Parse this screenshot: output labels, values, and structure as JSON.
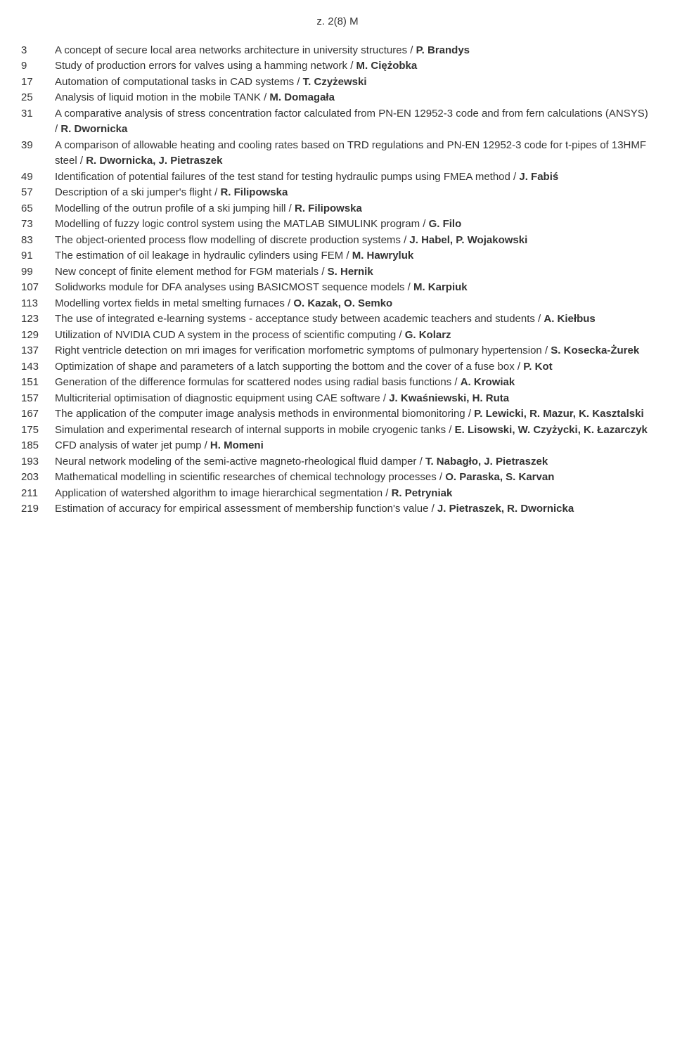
{
  "header": "z. 2(8) M",
  "entries": [
    {
      "page": "3",
      "title": "A concept of secure local area networks architecture in university structures / ",
      "author": "P. Brandys"
    },
    {
      "page": "9",
      "title": "Study of production errors for valves using a hamming network / ",
      "author": "M. Ciężobka"
    },
    {
      "page": "17",
      "title": "Automation of computational tasks in CAD systems / ",
      "author": "T. Czyżewski"
    },
    {
      "page": "25",
      "title": "Analysis of liquid motion in the mobile TANK / ",
      "author": "M. Domagała"
    },
    {
      "page": "31",
      "title": "A comparative analysis of stress concentration factor calculated from PN-EN 12952-3 code and from fern calculations (ANSYS) / ",
      "author": "R. Dwornicka"
    },
    {
      "page": "39",
      "title": "A comparison of allowable heating and cooling rates based on TRD regulations and PN-EN 12952-3 code for t-pipes of 13HMF steel / ",
      "author": "R. Dwornicka, J. Pietraszek"
    },
    {
      "page": "49",
      "title": "Identification of potential failures of the test stand for testing hydraulic pumps using FMEA method / ",
      "author": "J. Fabiś"
    },
    {
      "page": "57",
      "title": "Description of a ski jumper's flight / ",
      "author": "R. Filipowska"
    },
    {
      "page": "65",
      "title": "Modelling of the outrun profile of a ski jumping hill / ",
      "author": "R. Filipowska"
    },
    {
      "page": "73",
      "title": "Modelling of fuzzy logic control system using the MATLAB SIMULINK program / ",
      "author": "G. Filo"
    },
    {
      "page": "83",
      "title": "The object-oriented process flow modelling of discrete production systems / ",
      "author": "J. Habel, P. Wojakowski"
    },
    {
      "page": "91",
      "title": "The estimation of oil leakage in hydraulic cylinders using FEM / ",
      "author": "M. Hawryluk"
    },
    {
      "page": "99",
      "title": "New concept of finite element method for FGM materials / ",
      "author": "S. Hernik"
    },
    {
      "page": "107",
      "title": "Solidworks module for DFA analyses using BASICMOST sequence models / ",
      "author": "M. Karpiuk"
    },
    {
      "page": "113",
      "title": "Modelling vortex fields in metal smelting furnaces / ",
      "author": "O. Kazak, O. Semko"
    },
    {
      "page": "123",
      "title": "The use of integrated e-learning systems - acceptance study between academic teachers and students / ",
      "author": "A. Kiełbus"
    },
    {
      "page": "129",
      "title": "Utilization of NVIDIA CUD A system in the process of scientific computing / ",
      "author": "G. Kolarz"
    },
    {
      "page": "137",
      "title": "Right ventricle detection on mri images for verification morfometric symptoms of pulmonary hypertension / ",
      "author": "S. Kosecka-Żurek"
    },
    {
      "page": "143",
      "title": "Optimization of shape and parameters of a latch supporting the bottom and the cover of a fuse box / ",
      "author": "P. Kot"
    },
    {
      "page": "151",
      "title": "Generation of the difference formulas for scattered nodes using radial basis functions / ",
      "author": "A. Krowiak"
    },
    {
      "page": "157",
      "title": "Multicriterial optimisation of diagnostic equipment using CAE software / ",
      "author": "J. Kwaśniewski, H. Ruta"
    },
    {
      "page": "167",
      "title": "The application of the computer image analysis methods in environmental biomonitoring / ",
      "author": "P. Lewicki, R. Mazur, K. Kasztalski"
    },
    {
      "page": "175",
      "title": "Simulation and experimental research of internal supports in mobile cryogenic tanks / ",
      "author": "E. Lisowski, W. Czyżycki, K. Łazarczyk"
    },
    {
      "page": "185",
      "title": "CFD analysis of water jet pump / ",
      "author": "H. Momeni"
    },
    {
      "page": "193",
      "title": "Neural network modeling of the semi-active magneto-rheological fluid damper / ",
      "author": "T. Nabagło, J. Pietraszek"
    },
    {
      "page": "203",
      "title": "Mathematical modelling in scientific researches of chemical technology processes / ",
      "author": "O. Paraska, S. Karvan"
    },
    {
      "page": "211",
      "title": "Application of watershed algorithm to image hierarchical segmentation / ",
      "author": "R. Petryniak"
    },
    {
      "page": "219",
      "title": "Estimation of accuracy for empirical assessment of membership function's value / ",
      "author": "J. Pietraszek, R. Dwornicka"
    }
  ]
}
